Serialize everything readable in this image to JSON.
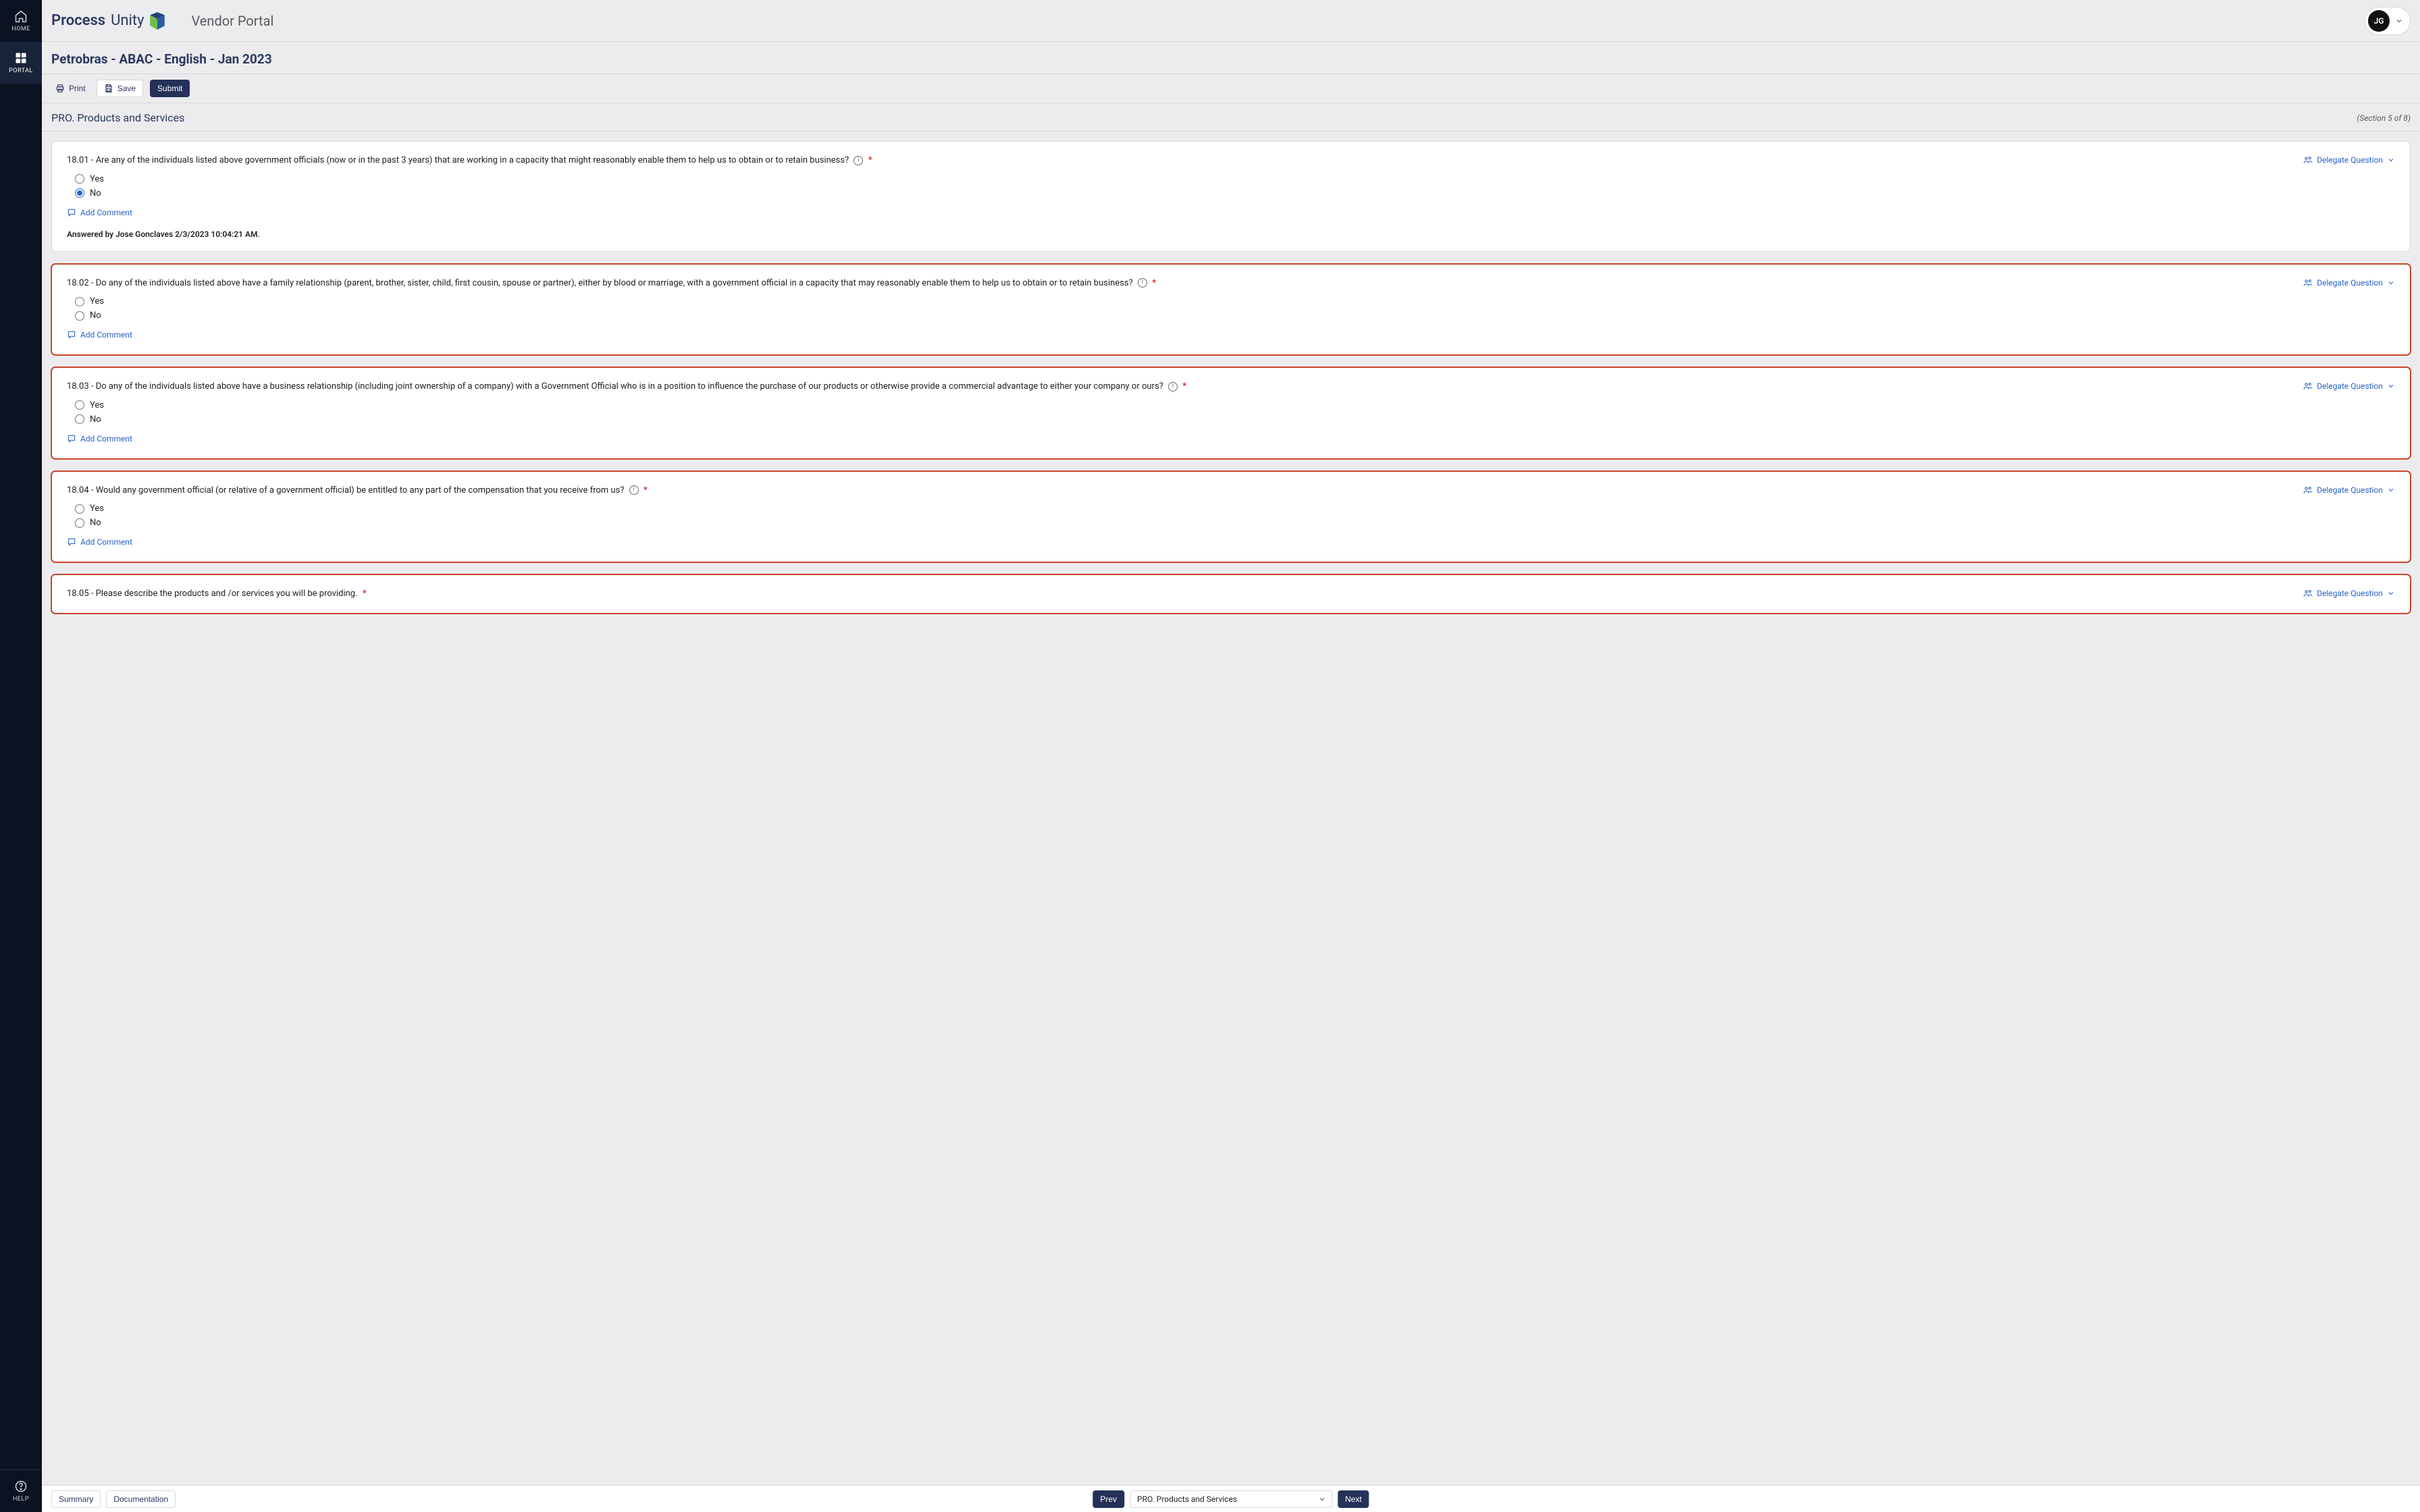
{
  "colors": {
    "bg_page": "#ececee",
    "bg_content": "#ffffff",
    "border_gray": "#d8d8dc",
    "navy": "#2c3960",
    "blue_accent": "#2863c6",
    "btn_primary": "#24325a",
    "sidebar_bg": "#0b1221",
    "sidebar_active": "#19233a",
    "danger_red": "#c9472c",
    "red": "#d12c2c"
  },
  "sidebar": {
    "home_label": "HOME",
    "portal_label": "PORTAL",
    "help_label": "HELP"
  },
  "topbar": {
    "brand_primary": "Process",
    "brand_secondary": "Unity",
    "app_title": "Vendor Portal",
    "user_initials": "JG"
  },
  "page": {
    "title": "Petrobras - ABAC - English - Jan 2023"
  },
  "toolbar": {
    "print_label": "Print",
    "save_label": "Save",
    "submit_label": "Submit"
  },
  "section": {
    "title": "PRO. Products and Services",
    "counter": "(Section 5 of 8)"
  },
  "delegate_label": "Delegate Question",
  "add_comment_label": "Add Comment",
  "option_yes": "Yes",
  "option_no": "No",
  "questions": [
    {
      "id": "q1",
      "text": "18.01 - Are any of the individuals listed above government officials (now or in the past 3 years) that are working in a capacity that might reasonably enable them to help us to obtain or to retain business?",
      "has_info": true,
      "required": true,
      "answered": true,
      "selected": "No",
      "answered_by": "Answered by Jose Gonclaves 2/3/2023 10:04:21 AM."
    },
    {
      "id": "q2",
      "text": "18.02 - Do any of the individuals listed above have a family relationship (parent, brother, sister, child, first cousin, spouse or partner), either by blood or marriage, with a government official in a capacity that may reasonably enable them to help us to obtain or to retain business?",
      "has_info": true,
      "required": true,
      "answered": false,
      "selected": null
    },
    {
      "id": "q3",
      "text": "18.03 - Do any of the individuals listed above have a business relationship (including joint ownership of a company) with a Government Official who is in a position to influence the purchase of our products or otherwise provide a commercial advantage to either your company or ours?",
      "has_info": true,
      "required": true,
      "answered": false,
      "selected": null
    },
    {
      "id": "q4",
      "text": "18.04 - Would any government official (or relative of a government official) be entitled to any part of the compensation that you receive from us?",
      "has_info": true,
      "required": true,
      "answered": false,
      "selected": null
    },
    {
      "id": "q5",
      "text": "18.05 - Please describe the products and /or services you will be providing.",
      "has_info": false,
      "required": true,
      "answered": false,
      "selected": null,
      "no_options": true
    }
  ],
  "bottom": {
    "summary_label": "Summary",
    "documentation_label": "Documentation",
    "prev_label": "Prev",
    "next_label": "Next",
    "section_select_value": "PRO. Products and Services"
  }
}
